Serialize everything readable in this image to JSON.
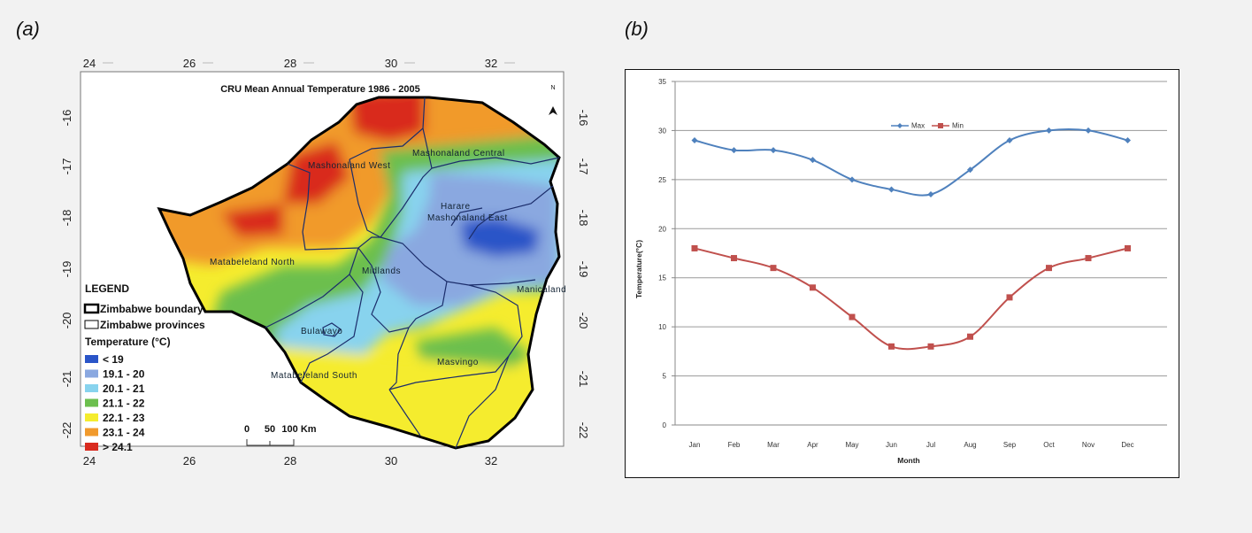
{
  "panels": {
    "a": "(a)",
    "b": "(b)"
  },
  "map": {
    "title": "CRU Mean Annual Temperature 1986 - 2005",
    "north_label": "N",
    "lon_ticks": [
      "24",
      "26",
      "28",
      "30",
      "32"
    ],
    "lat_ticks": [
      "-16",
      "-17",
      "-18",
      "-19",
      "-20",
      "-21",
      "-22"
    ],
    "provinces": [
      "Mashonaland West",
      "Mashonaland Central",
      "Harare",
      "Mashonaland East",
      "Matabeleland North",
      "Midlands",
      "Manicaland",
      "Bulawayo",
      "Masvingo",
      "Matabeleland South"
    ],
    "legend": {
      "title": "LEGEND",
      "boundary": "Zimbabwe boundary",
      "provinces": "Zimbabwe provinces",
      "temp_title": "Temperature (°C)",
      "classes": [
        {
          "label": "< 19",
          "color": "#2a55c8"
        },
        {
          "label": "19.1 - 20",
          "color": "#8aa8e0"
        },
        {
          "label": "20.1 - 21",
          "color": "#88d3ee"
        },
        {
          "label": "21.1 - 22",
          "color": "#6cbf4e"
        },
        {
          "label": "22.1 - 23",
          "color": "#f5ec2e"
        },
        {
          "label": "23.1 - 24",
          "color": "#f19a2c"
        },
        {
          "label": "> 24.1",
          "color": "#d92b1f"
        }
      ]
    },
    "scale": {
      "labels": [
        "0",
        "50",
        "100 Km"
      ]
    }
  },
  "chart_data": {
    "type": "line",
    "title": "",
    "categories": [
      "Jan",
      "Feb",
      "Mar",
      "Apr",
      "May",
      "Jun",
      "Jul",
      "Aug",
      "Sep",
      "Oct",
      "Nov",
      "Dec"
    ],
    "series": [
      {
        "name": "Max",
        "color": "#4f81bd",
        "marker": "diamond",
        "values": [
          29,
          28,
          28,
          27,
          25,
          24,
          23.5,
          26,
          29,
          30,
          30,
          29
        ]
      },
      {
        "name": "Min",
        "color": "#c0504d",
        "marker": "square",
        "values": [
          18,
          17,
          16,
          14,
          11,
          8,
          8,
          9,
          13,
          16,
          17,
          18
        ]
      }
    ],
    "xlabel": "Month",
    "ylabel": "Temperature(°C)",
    "ylim": [
      0,
      35
    ],
    "yticks": [
      0,
      5,
      10,
      15,
      20,
      25,
      30,
      35
    ],
    "grid": true,
    "legend_position": "top"
  }
}
